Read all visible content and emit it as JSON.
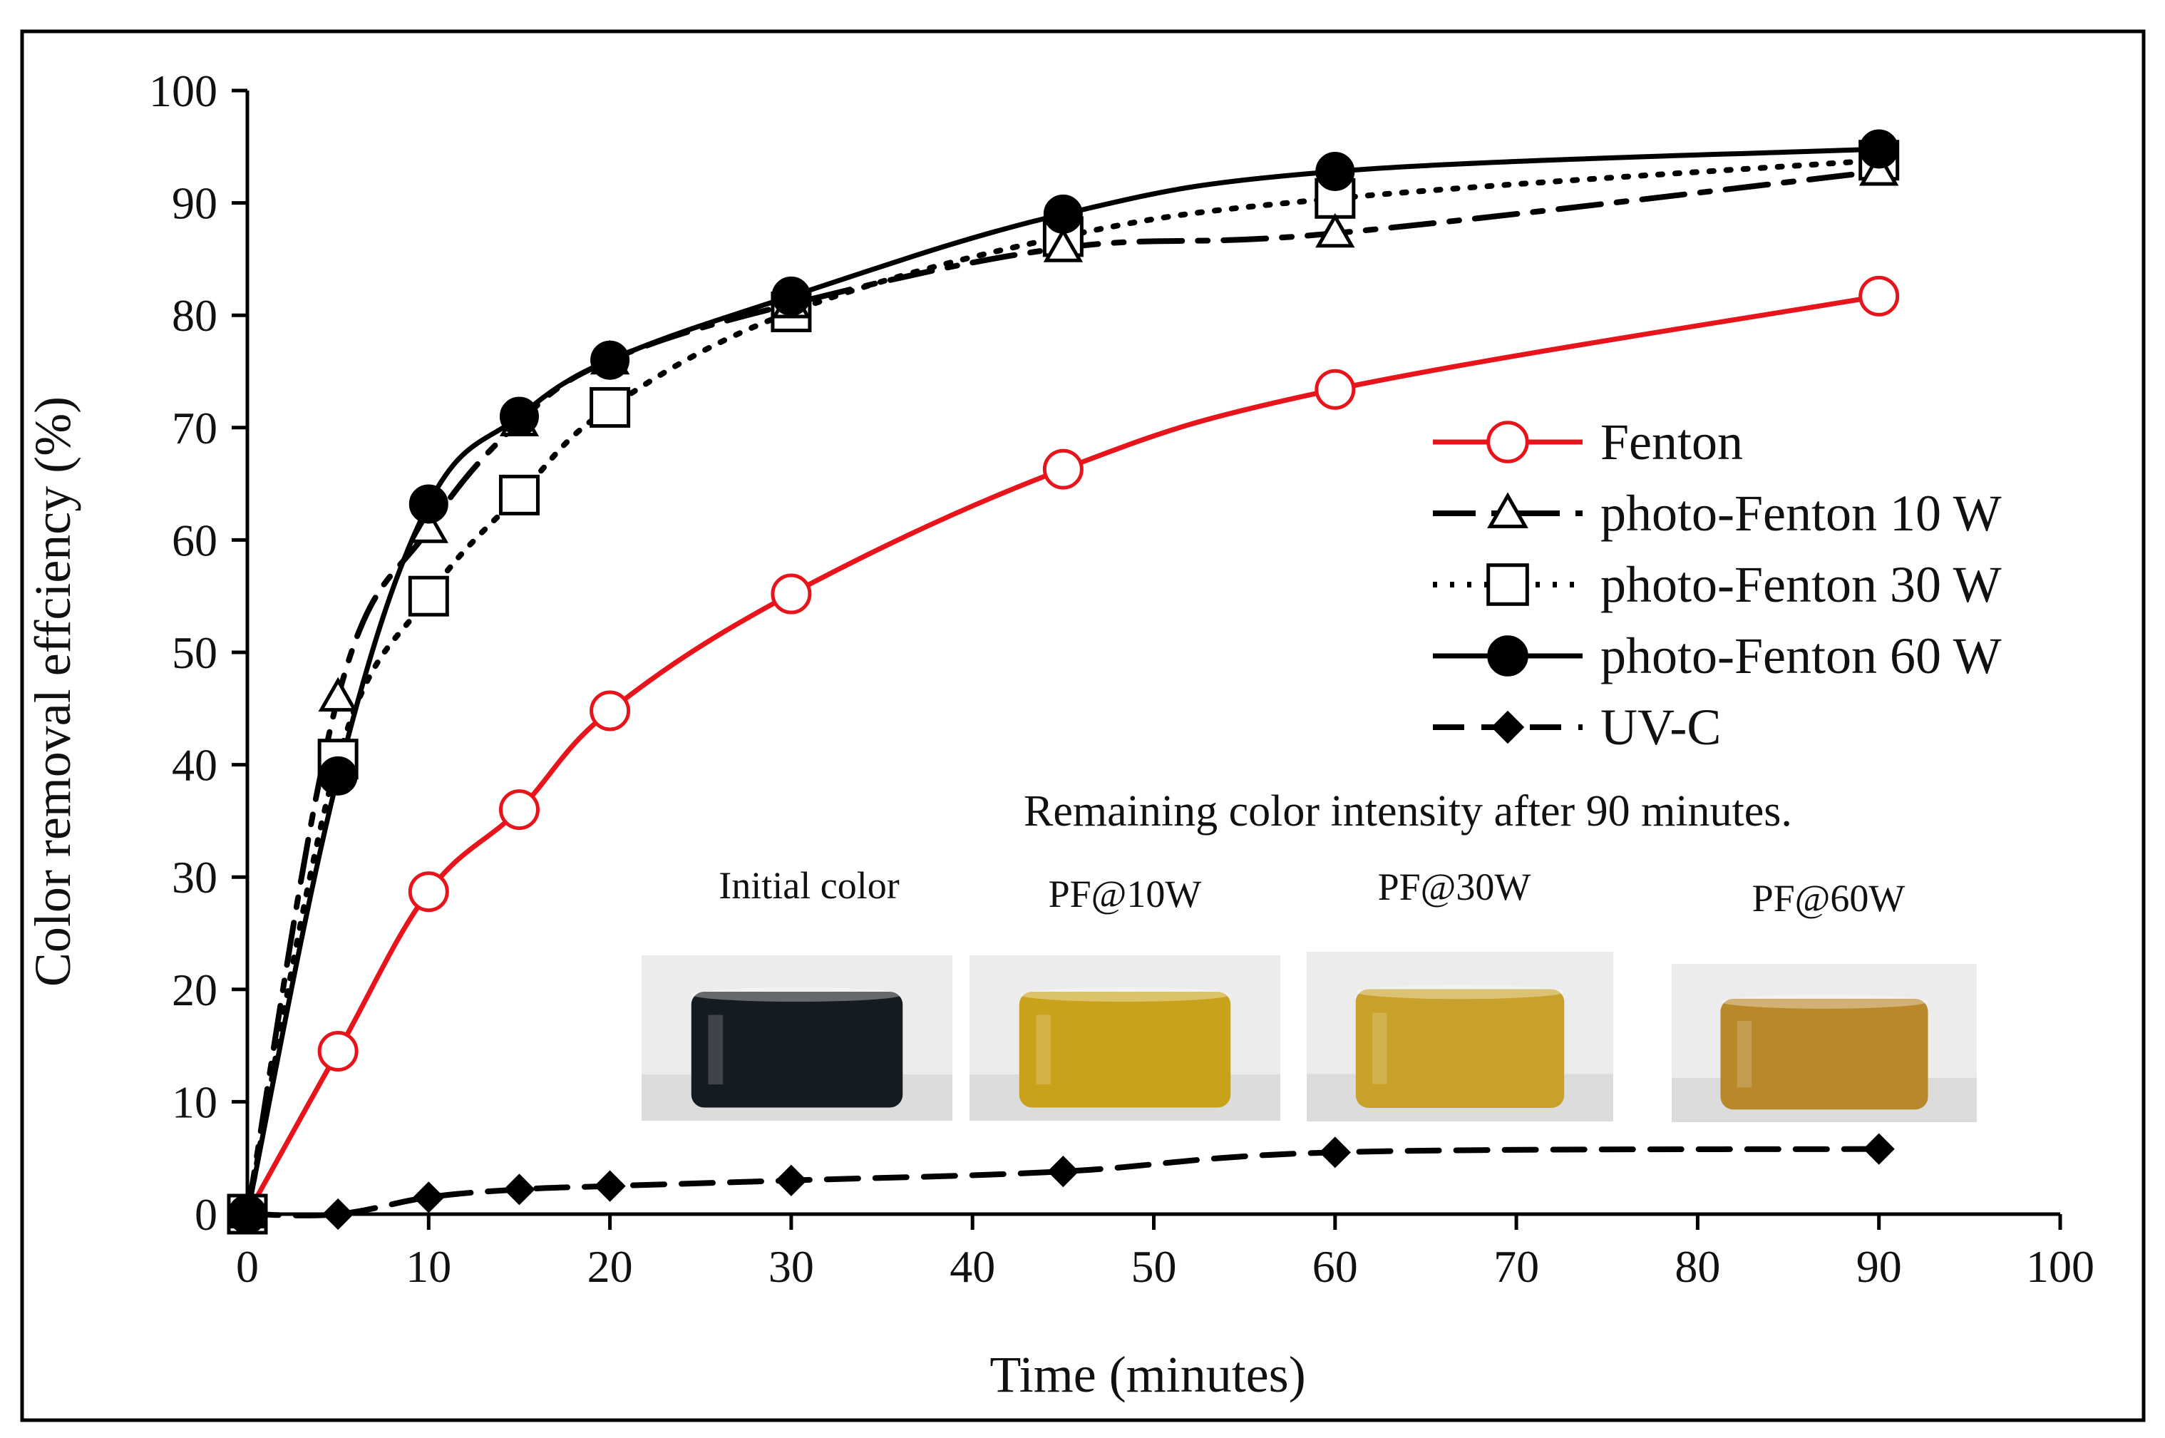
{
  "chart_data": {
    "type": "line",
    "title": "",
    "xlabel": "Time (minutes)",
    "ylabel": "Color removal effciency (%)",
    "xlim": [
      0,
      100
    ],
    "ylim": [
      0,
      100
    ],
    "xticks": [
      0,
      10,
      20,
      30,
      40,
      50,
      60,
      70,
      80,
      90,
      100
    ],
    "yticks": [
      0,
      10,
      20,
      30,
      40,
      50,
      60,
      70,
      80,
      90,
      100
    ],
    "grid": false,
    "legend_position": "right",
    "series": [
      {
        "name": "Fenton",
        "color": "#e8141b",
        "marker": "circle-open",
        "line": "solid",
        "x": [
          0,
          5,
          10,
          15,
          20,
          30,
          45,
          60,
          90
        ],
        "y": [
          0,
          14.5,
          28.7,
          36,
          44.8,
          55.2,
          66.3,
          73.4,
          81.7
        ]
      },
      {
        "name": "photo-Fenton 10 W",
        "color": "#000000",
        "marker": "triangle-open",
        "line": "dashdot",
        "x": [
          0,
          5,
          10,
          15,
          20,
          30,
          45,
          60,
          90
        ],
        "y": [
          0,
          46,
          61,
          70.5,
          76,
          81,
          86,
          87.3,
          92.8
        ]
      },
      {
        "name": "photo-Fenton 30 W",
        "color": "#000000",
        "marker": "square-open",
        "line": "dotted",
        "x": [
          0,
          5,
          10,
          15,
          20,
          30,
          45,
          60,
          90
        ],
        "y": [
          0,
          40.5,
          55,
          64,
          71.8,
          80.3,
          87,
          90.4,
          93.8
        ]
      },
      {
        "name": "photo-Fenton 60 W",
        "color": "#000000",
        "marker": "circle-filled",
        "line": "solid",
        "x": [
          0,
          5,
          10,
          15,
          20,
          30,
          45,
          60,
          90
        ],
        "y": [
          0,
          39,
          63.2,
          71,
          76,
          81.7,
          89,
          92.8,
          94.8
        ]
      },
      {
        "name": "UV-C",
        "color": "#000000",
        "marker": "diamond-filled",
        "line": "dashed",
        "x": [
          0,
          5,
          10,
          15,
          20,
          30,
          45,
          60,
          90
        ],
        "y": [
          0,
          0,
          1.5,
          2.2,
          2.5,
          3,
          3.8,
          5.5,
          5.8
        ]
      }
    ],
    "annotation": {
      "title": "Remaining color intensity after 90 minutes.",
      "photos": [
        {
          "label": "Initial color",
          "liquid_color": "#141b22"
        },
        {
          "label": "PF@10W",
          "liquid_color": "#c9a21c"
        },
        {
          "label": "PF@30W",
          "liquid_color": "#c8a12a"
        },
        {
          "label": "PF@60W",
          "liquid_color": "#b9882a"
        }
      ]
    }
  }
}
